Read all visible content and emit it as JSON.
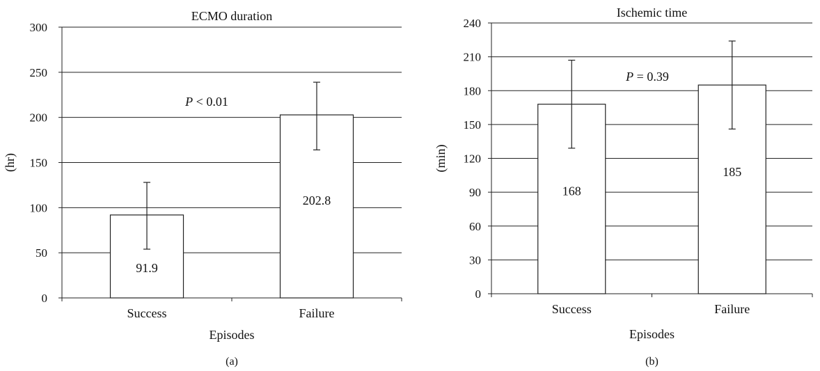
{
  "chart_data": [
    {
      "type": "bar",
      "title": "ECMO duration",
      "panel_label": "(a)",
      "xlabel": "Episodes",
      "ylabel": "(hr)",
      "categories": [
        "Success",
        "Failure"
      ],
      "values": [
        91.9,
        202.8
      ],
      "value_labels": [
        "91.9",
        "202.8"
      ],
      "error_bars": [
        [
          54,
          128
        ],
        [
          164,
          239
        ]
      ],
      "ylim": [
        0,
        300
      ],
      "yticks": [
        0,
        50,
        100,
        150,
        200,
        250,
        300
      ],
      "grid": true,
      "annotation": {
        "p_symbol": "P",
        "text": "< 0.01"
      }
    },
    {
      "type": "bar",
      "title": "Ischemic time",
      "panel_label": "(b)",
      "xlabel": "Episodes",
      "ylabel": "(min)",
      "categories": [
        "Success",
        "Failure"
      ],
      "values": [
        168,
        185
      ],
      "value_labels": [
        "168",
        "185"
      ],
      "error_bars": [
        [
          129,
          207
        ],
        [
          146,
          224
        ]
      ],
      "ylim": [
        0,
        240
      ],
      "yticks": [
        0,
        30,
        60,
        90,
        120,
        150,
        180,
        210,
        240
      ],
      "grid": true,
      "annotation": {
        "p_symbol": "P",
        "text": "= 0.39"
      }
    }
  ]
}
